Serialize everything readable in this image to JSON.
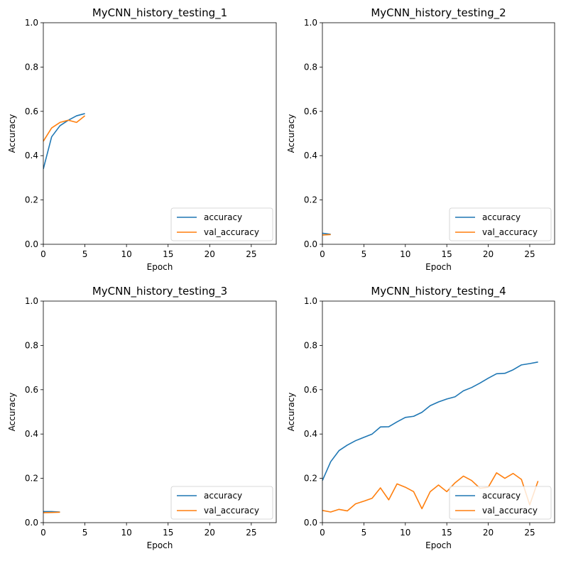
{
  "colors": {
    "accuracy": "#1f77b4",
    "val_accuracy": "#ff7f0e"
  },
  "chart_data": [
    {
      "type": "line",
      "title": "MyCNN_history_testing_1",
      "xlabel": "Epoch",
      "ylabel": "Accuracy",
      "xlim": [
        0,
        28
      ],
      "ylim": [
        0,
        1
      ],
      "xticks": [
        0,
        5,
        10,
        15,
        20,
        25
      ],
      "yticks": [
        "0.0",
        "0.2",
        "0.4",
        "0.6",
        "0.8",
        "1.0"
      ],
      "legend": "lower-right",
      "series": [
        {
          "name": "accuracy",
          "x": [
            0,
            1,
            2,
            3,
            4,
            5
          ],
          "y": [
            0.34,
            0.485,
            0.535,
            0.56,
            0.58,
            0.59
          ]
        },
        {
          "name": "val_accuracy",
          "x": [
            0,
            1,
            2,
            3,
            4,
            5
          ],
          "y": [
            0.465,
            0.525,
            0.55,
            0.56,
            0.55,
            0.58
          ]
        }
      ]
    },
    {
      "type": "line",
      "title": "MyCNN_history_testing_2",
      "xlabel": "Epoch",
      "ylabel": "Accuracy",
      "xlim": [
        0,
        28
      ],
      "ylim": [
        0,
        1
      ],
      "xticks": [
        0,
        5,
        10,
        15,
        20,
        25
      ],
      "yticks": [
        "0.0",
        "0.2",
        "0.4",
        "0.6",
        "0.8",
        "1.0"
      ],
      "legend": "lower-right",
      "series": [
        {
          "name": "accuracy",
          "x": [
            0,
            1
          ],
          "y": [
            0.05,
            0.045
          ]
        },
        {
          "name": "val_accuracy",
          "x": [
            0,
            1
          ],
          "y": [
            0.042,
            0.044
          ]
        }
      ]
    },
    {
      "type": "line",
      "title": "MyCNN_history_testing_3",
      "xlabel": "Epoch",
      "ylabel": "Accuracy",
      "xlim": [
        0,
        28
      ],
      "ylim": [
        0,
        1
      ],
      "xticks": [
        0,
        5,
        10,
        15,
        20,
        25
      ],
      "yticks": [
        "0.0",
        "0.2",
        "0.4",
        "0.6",
        "0.8",
        "1.0"
      ],
      "legend": "lower-right",
      "series": [
        {
          "name": "accuracy",
          "x": [
            0,
            1,
            2
          ],
          "y": [
            0.05,
            0.05,
            0.048
          ]
        },
        {
          "name": "val_accuracy",
          "x": [
            0,
            1,
            2
          ],
          "y": [
            0.045,
            0.046,
            0.047
          ]
        }
      ]
    },
    {
      "type": "line",
      "title": "MyCNN_history_testing_4",
      "xlabel": "Epoch",
      "ylabel": "Accuracy",
      "xlim": [
        0,
        28
      ],
      "ylim": [
        0,
        1
      ],
      "xticks": [
        0,
        5,
        10,
        15,
        20,
        25
      ],
      "yticks": [
        "0.0",
        "0.2",
        "0.4",
        "0.6",
        "0.8",
        "1.0"
      ],
      "legend": "lower-right",
      "series": [
        {
          "name": "accuracy",
          "x": [
            0,
            1,
            2,
            3,
            4,
            5,
            6,
            7,
            8,
            9,
            10,
            11,
            12,
            13,
            14,
            15,
            16,
            17,
            18,
            19,
            20,
            21,
            22,
            23,
            24,
            25,
            26
          ],
          "y": [
            0.19,
            0.275,
            0.325,
            0.35,
            0.37,
            0.385,
            0.4,
            0.432,
            0.433,
            0.455,
            0.475,
            0.48,
            0.498,
            0.528,
            0.545,
            0.558,
            0.568,
            0.595,
            0.61,
            0.63,
            0.652,
            0.672,
            0.674,
            0.69,
            0.712,
            0.718,
            0.725
          ]
        },
        {
          "name": "val_accuracy",
          "x": [
            0,
            1,
            2,
            3,
            4,
            5,
            6,
            7,
            8,
            9,
            10,
            11,
            12,
            13,
            14,
            15,
            16,
            17,
            18,
            19,
            20,
            21,
            22,
            23,
            24,
            25,
            26
          ],
          "y": [
            0.055,
            0.048,
            0.06,
            0.053,
            0.085,
            0.097,
            0.11,
            0.157,
            0.103,
            0.175,
            0.16,
            0.14,
            0.063,
            0.14,
            0.17,
            0.14,
            0.18,
            0.21,
            0.19,
            0.155,
            0.16,
            0.225,
            0.2,
            0.222,
            0.195,
            0.08,
            0.188
          ]
        }
      ]
    }
  ]
}
